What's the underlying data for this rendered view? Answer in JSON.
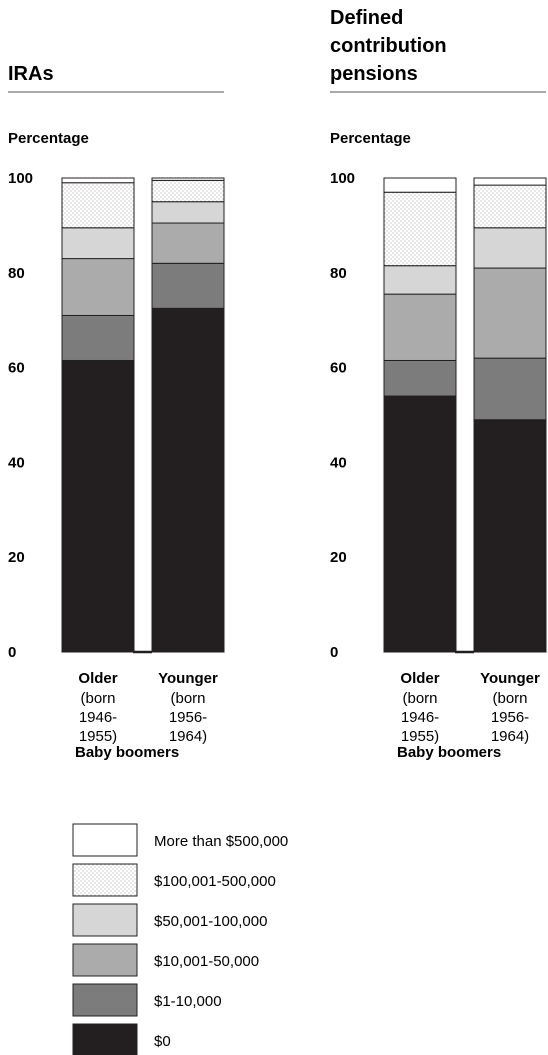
{
  "chart_data": [
    {
      "type": "bar",
      "stacked": true,
      "title": "IRAs",
      "ylabel": "Percentage",
      "ylim": [
        0,
        100
      ],
      "yticks": [
        "0",
        "20",
        "40",
        "60",
        "80",
        "100"
      ],
      "group_label": "Baby boomers",
      "categories": [
        {
          "name": "Older",
          "sub": [
            "(born",
            "1946-",
            "1955)"
          ]
        },
        {
          "name": "Younger",
          "sub": [
            "(born",
            "1956-",
            "1964)"
          ]
        }
      ],
      "series": [
        {
          "name": "$0",
          "values": [
            61.5,
            72.5
          ]
        },
        {
          "name": "$1-10,000",
          "values": [
            9.5,
            9.5
          ]
        },
        {
          "name": "$10,001-50,000",
          "values": [
            12,
            8.5
          ]
        },
        {
          "name": "$50,001-100,000",
          "values": [
            6.5,
            4.5
          ]
        },
        {
          "name": "$100,001-500,000",
          "values": [
            9.5,
            4.5
          ]
        },
        {
          "name": "More than $500,000",
          "values": [
            1,
            0.5
          ]
        }
      ]
    },
    {
      "type": "bar",
      "stacked": true,
      "title": "Defined contribution pensions",
      "title_lines": [
        "Defined",
        "contribution",
        "pensions"
      ],
      "ylabel": "Percentage",
      "ylim": [
        0,
        100
      ],
      "yticks": [
        "0",
        "20",
        "40",
        "60",
        "80",
        "100"
      ],
      "group_label": "Baby boomers",
      "categories": [
        {
          "name": "Older",
          "sub": [
            "(born",
            "1946-",
            "1955)"
          ]
        },
        {
          "name": "Younger",
          "sub": [
            "(born",
            "1956-",
            "1964)"
          ]
        }
      ],
      "series": [
        {
          "name": "$0",
          "values": [
            54,
            49
          ]
        },
        {
          "name": "$1-10,000",
          "values": [
            7.5,
            13
          ]
        },
        {
          "name": "$10,001-50,000",
          "values": [
            14,
            19
          ]
        },
        {
          "name": "$50,001-100,000",
          "values": [
            6,
            8.5
          ]
        },
        {
          "name": "$100,001-500,000",
          "values": [
            15.5,
            9
          ]
        },
        {
          "name": "More than $500,000",
          "values": [
            3,
            1.5
          ]
        }
      ]
    }
  ],
  "legend": [
    {
      "label": "More than $500,000",
      "fill": "#ffffff",
      "pattern": false
    },
    {
      "label": "$100,001-500,000",
      "fill": "#ffffff",
      "pattern": true
    },
    {
      "label": "$50,001-100,000",
      "fill": "#d6d6d6",
      "pattern": false
    },
    {
      "label": "$10,001-50,000",
      "fill": "#ababab",
      "pattern": false
    },
    {
      "label": "$1-10,000",
      "fill": "#7c7c7c",
      "pattern": false
    },
    {
      "label": "$0",
      "fill": "#231f20",
      "pattern": false
    }
  ],
  "colors": {
    "$0": "#231f20",
    "$1-10,000": "#7c7c7c",
    "$10,001-50,000": "#ababab",
    "$50,001-100,000": "#d6d6d6",
    "$100,001-500,000": "#ffffff",
    "More than $500,000": "#ffffff"
  }
}
